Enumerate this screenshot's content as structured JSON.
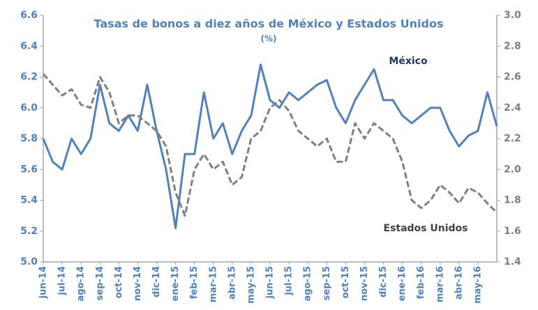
{
  "chart_data": {
    "type": "line",
    "title": "Tasas de bonos a diez años de México y Estados Unidos",
    "subtitle": "(%)",
    "annotations": [
      "México",
      "Estados Unidos"
    ],
    "categories": [
      "jun-14",
      null,
      "jul-14",
      null,
      "ago-14",
      null,
      "sep-14",
      null,
      "oct-14",
      null,
      "nov-14",
      null,
      "dic-14",
      null,
      "ene-15",
      null,
      "feb-15",
      null,
      "mar-15",
      null,
      "abr-15",
      null,
      "may-15",
      null,
      "jun-15",
      null,
      "jul-15",
      null,
      "ago-15",
      null,
      "sep-15",
      null,
      "oct-15",
      null,
      "nov-15",
      null,
      "dic-15",
      null,
      "ene-16",
      null,
      "feb-16",
      null,
      "mar-16",
      null,
      "abr-16",
      null,
      "may-16",
      null,
      null
    ],
    "series": [
      {
        "name": "México",
        "color": "#4f81bd",
        "axis": "y",
        "values": [
          5.8,
          5.65,
          5.6,
          5.8,
          5.7,
          5.8,
          6.15,
          5.9,
          5.85,
          5.95,
          5.85,
          6.15,
          5.85,
          5.6,
          5.22,
          5.7,
          5.7,
          6.1,
          5.8,
          5.9,
          5.7,
          5.85,
          5.95,
          6.28,
          6.05,
          6.0,
          6.1,
          6.05,
          6.1,
          6.15,
          6.18,
          6.0,
          5.9,
          6.05,
          6.15,
          6.25,
          6.05,
          6.05,
          5.95,
          5.9,
          5.95,
          6.0,
          6.0,
          5.85,
          5.75,
          5.82,
          5.85,
          6.1,
          5.88
        ]
      },
      {
        "name": "Estados Unidos",
        "color": "#7f7f7f",
        "axis": "y2",
        "values": [
          2.62,
          2.55,
          2.48,
          2.52,
          2.42,
          2.4,
          2.6,
          2.5,
          2.3,
          2.35,
          2.35,
          2.3,
          2.25,
          2.15,
          1.85,
          1.7,
          2.0,
          2.1,
          2.0,
          2.05,
          1.9,
          1.95,
          2.2,
          2.25,
          2.4,
          2.45,
          2.38,
          2.25,
          2.2,
          2.15,
          2.2,
          2.05,
          2.05,
          2.3,
          2.2,
          2.3,
          2.25,
          2.2,
          2.05,
          1.8,
          1.75,
          1.8,
          1.9,
          1.85,
          1.78,
          1.88,
          1.85,
          1.78,
          1.72
        ]
      }
    ],
    "ylim": [
      5.0,
      6.6
    ],
    "yticks": [
      {
        "value": 5.0,
        "label": "5.0"
      },
      5.2,
      5.4,
      5.6,
      5.8,
      {
        "value": 6.0,
        "label": "6.0"
      },
      6.2,
      6.4,
      6.6
    ],
    "y2lim": [
      1.4,
      3.0
    ],
    "y2ticks": [
      1.4,
      1.6,
      1.8,
      {
        "value": 2.0,
        "label": "2.0"
      },
      2.2,
      2.4,
      2.6,
      2.8,
      {
        "value": 3.0,
        "label": "3.0"
      }
    ]
  }
}
